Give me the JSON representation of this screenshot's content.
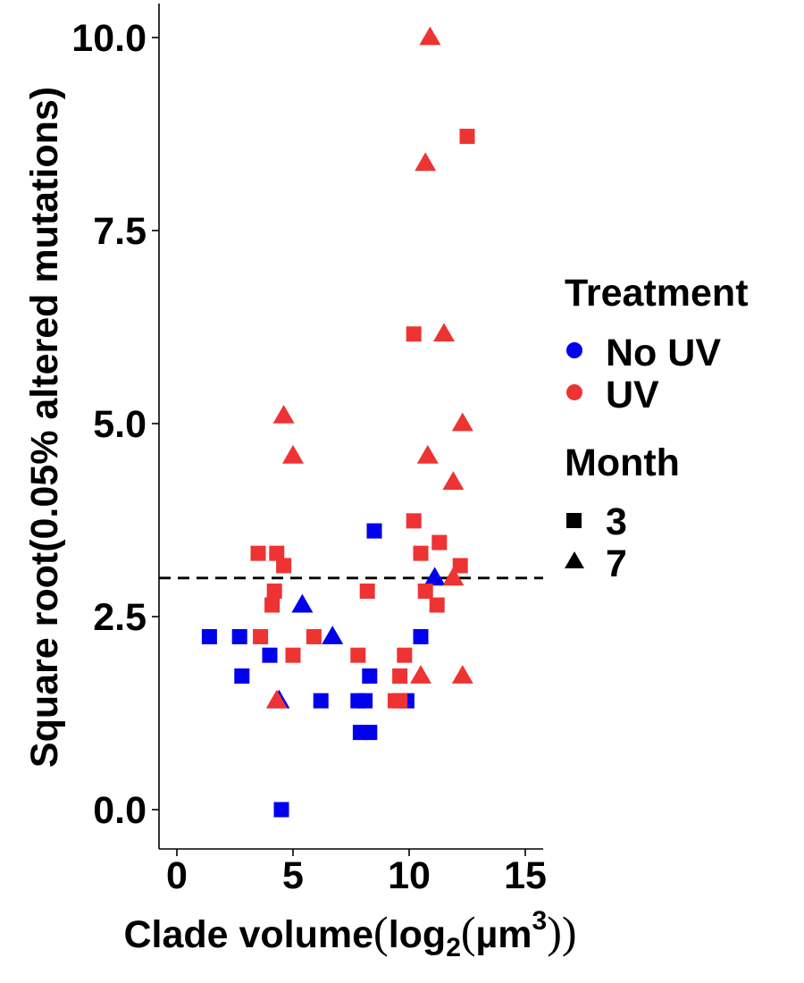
{
  "chart_data": {
    "type": "scatter",
    "xlabel": "Clade volume(log2(µm3))",
    "xlabel_parts": {
      "main": "Clade volume",
      "open": "(",
      "log": "log",
      "sub": "2",
      "open2": "(",
      "unit": "µm",
      "sup": "3",
      "close": "))"
    },
    "ylabel": "Square root(0.05% altered mutations)",
    "xlim": [
      -0.8,
      15.8
    ],
    "ylim": [
      -1.5,
      10.3
    ],
    "xticks": [
      0,
      5,
      10,
      15
    ],
    "xtick_labels": [
      "0",
      "5",
      "10",
      "15"
    ],
    "yticks": [
      0,
      2.5,
      5,
      7.5,
      10
    ],
    "ytick_labels": [
      "0.0",
      "2.5",
      "5.0",
      "7.5",
      "10.0"
    ],
    "reference_line": {
      "y": 3.0,
      "style": "dashed"
    },
    "grid": false,
    "legend_position": "right",
    "colors": {
      "No UV": "#0000ee",
      "UV": "#ee3333"
    },
    "legend": {
      "treatment": {
        "title": "Treatment",
        "items": [
          {
            "label": "No UV",
            "color": "#0000ee"
          },
          {
            "label": "UV",
            "color": "#ee3333"
          }
        ]
      },
      "month": {
        "title": "Month",
        "items": [
          {
            "label": "3",
            "shape": "square"
          },
          {
            "label": "7",
            "shape": "triangle"
          }
        ]
      }
    },
    "points": [
      {
        "x": 1.4,
        "y": 2.24,
        "treatment": "No UV",
        "month": "3"
      },
      {
        "x": 2.7,
        "y": 2.24,
        "treatment": "No UV",
        "month": "3"
      },
      {
        "x": 2.8,
        "y": 1.73,
        "treatment": "No UV",
        "month": "3"
      },
      {
        "x": 4.0,
        "y": 2.0,
        "treatment": "No UV",
        "month": "3"
      },
      {
        "x": 4.4,
        "y": 1.41,
        "treatment": "No UV",
        "month": "7"
      },
      {
        "x": 4.5,
        "y": 0.0,
        "treatment": "No UV",
        "month": "3"
      },
      {
        "x": 5.4,
        "y": 2.65,
        "treatment": "No UV",
        "month": "7"
      },
      {
        "x": 6.2,
        "y": 1.41,
        "treatment": "No UV",
        "month": "3"
      },
      {
        "x": 6.7,
        "y": 2.24,
        "treatment": "No UV",
        "month": "7"
      },
      {
        "x": 7.8,
        "y": 1.41,
        "treatment": "No UV",
        "month": "3"
      },
      {
        "x": 8.1,
        "y": 1.41,
        "treatment": "No UV",
        "month": "3"
      },
      {
        "x": 7.9,
        "y": 1.0,
        "treatment": "No UV",
        "month": "3"
      },
      {
        "x": 8.3,
        "y": 1.0,
        "treatment": "No UV",
        "month": "3"
      },
      {
        "x": 8.3,
        "y": 1.73,
        "treatment": "No UV",
        "month": "3"
      },
      {
        "x": 8.5,
        "y": 3.61,
        "treatment": "No UV",
        "month": "3"
      },
      {
        "x": 9.9,
        "y": 1.41,
        "treatment": "No UV",
        "month": "3"
      },
      {
        "x": 10.5,
        "y": 2.24,
        "treatment": "No UV",
        "month": "3"
      },
      {
        "x": 11.1,
        "y": 3.0,
        "treatment": "No UV",
        "month": "7"
      },
      {
        "x": 3.5,
        "y": 3.32,
        "treatment": "UV",
        "month": "3"
      },
      {
        "x": 3.6,
        "y": 2.24,
        "treatment": "UV",
        "month": "3"
      },
      {
        "x": 4.1,
        "y": 2.65,
        "treatment": "UV",
        "month": "3"
      },
      {
        "x": 4.2,
        "y": 2.83,
        "treatment": "UV",
        "month": "3"
      },
      {
        "x": 4.3,
        "y": 3.32,
        "treatment": "UV",
        "month": "3"
      },
      {
        "x": 4.6,
        "y": 3.16,
        "treatment": "UV",
        "month": "3"
      },
      {
        "x": 4.3,
        "y": 1.41,
        "treatment": "UV",
        "month": "7"
      },
      {
        "x": 4.6,
        "y": 5.1,
        "treatment": "UV",
        "month": "7"
      },
      {
        "x": 5.0,
        "y": 4.58,
        "treatment": "UV",
        "month": "7"
      },
      {
        "x": 5.0,
        "y": 2.0,
        "treatment": "UV",
        "month": "3"
      },
      {
        "x": 5.9,
        "y": 2.24,
        "treatment": "UV",
        "month": "3"
      },
      {
        "x": 7.8,
        "y": 2.0,
        "treatment": "UV",
        "month": "3"
      },
      {
        "x": 8.2,
        "y": 2.83,
        "treatment": "UV",
        "month": "3"
      },
      {
        "x": 9.4,
        "y": 1.41,
        "treatment": "UV",
        "month": "3"
      },
      {
        "x": 9.6,
        "y": 1.73,
        "treatment": "UV",
        "month": "3"
      },
      {
        "x": 9.6,
        "y": 1.41,
        "treatment": "UV",
        "month": "3"
      },
      {
        "x": 9.8,
        "y": 2.0,
        "treatment": "UV",
        "month": "3"
      },
      {
        "x": 10.2,
        "y": 6.16,
        "treatment": "UV",
        "month": "3"
      },
      {
        "x": 10.2,
        "y": 3.74,
        "treatment": "UV",
        "month": "3"
      },
      {
        "x": 10.5,
        "y": 3.32,
        "treatment": "UV",
        "month": "3"
      },
      {
        "x": 10.5,
        "y": 1.73,
        "treatment": "UV",
        "month": "7"
      },
      {
        "x": 10.7,
        "y": 2.83,
        "treatment": "UV",
        "month": "3"
      },
      {
        "x": 10.7,
        "y": 8.37,
        "treatment": "UV",
        "month": "7"
      },
      {
        "x": 10.8,
        "y": 4.58,
        "treatment": "UV",
        "month": "7"
      },
      {
        "x": 10.9,
        "y": 10.0,
        "treatment": "UV",
        "month": "7"
      },
      {
        "x": 11.2,
        "y": 2.65,
        "treatment": "UV",
        "month": "3"
      },
      {
        "x": 11.3,
        "y": 3.46,
        "treatment": "UV",
        "month": "3"
      },
      {
        "x": 11.5,
        "y": 6.16,
        "treatment": "UV",
        "month": "7"
      },
      {
        "x": 11.9,
        "y": 4.24,
        "treatment": "UV",
        "month": "7"
      },
      {
        "x": 11.9,
        "y": 3.0,
        "treatment": "UV",
        "month": "7"
      },
      {
        "x": 12.2,
        "y": 3.16,
        "treatment": "UV",
        "month": "3"
      },
      {
        "x": 12.3,
        "y": 5.0,
        "treatment": "UV",
        "month": "7"
      },
      {
        "x": 12.3,
        "y": 1.73,
        "treatment": "UV",
        "month": "7"
      },
      {
        "x": 12.5,
        "y": 8.72,
        "treatment": "UV",
        "month": "3"
      }
    ]
  }
}
